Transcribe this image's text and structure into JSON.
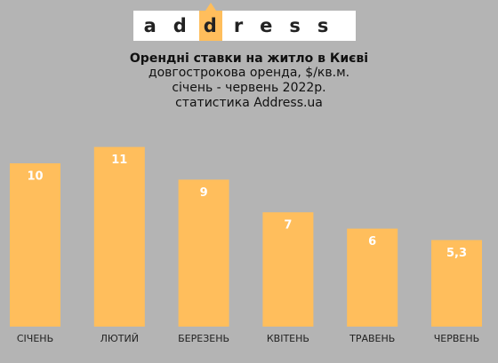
{
  "logo": "address",
  "chart_data": {
    "type": "bar",
    "title": "Орендні ставки на житло в Києві",
    "subtitle": [
      "довгострокова оренда, $/кв.м.",
      "січень - червень 2022р.",
      "статистика Address.ua"
    ],
    "categories": [
      "СІЧЕНЬ",
      "ЛЮТИЙ",
      "БЕРЕЗЕНЬ",
      "КВІТЕНЬ",
      "ТРАВЕНЬ",
      "ЧЕРВЕНЬ"
    ],
    "values": [
      10,
      11,
      9,
      7,
      6,
      5.3
    ],
    "value_labels": [
      "10",
      "11",
      "9",
      "7",
      "6",
      "5,3"
    ],
    "color": "#ffbe5c"
  }
}
